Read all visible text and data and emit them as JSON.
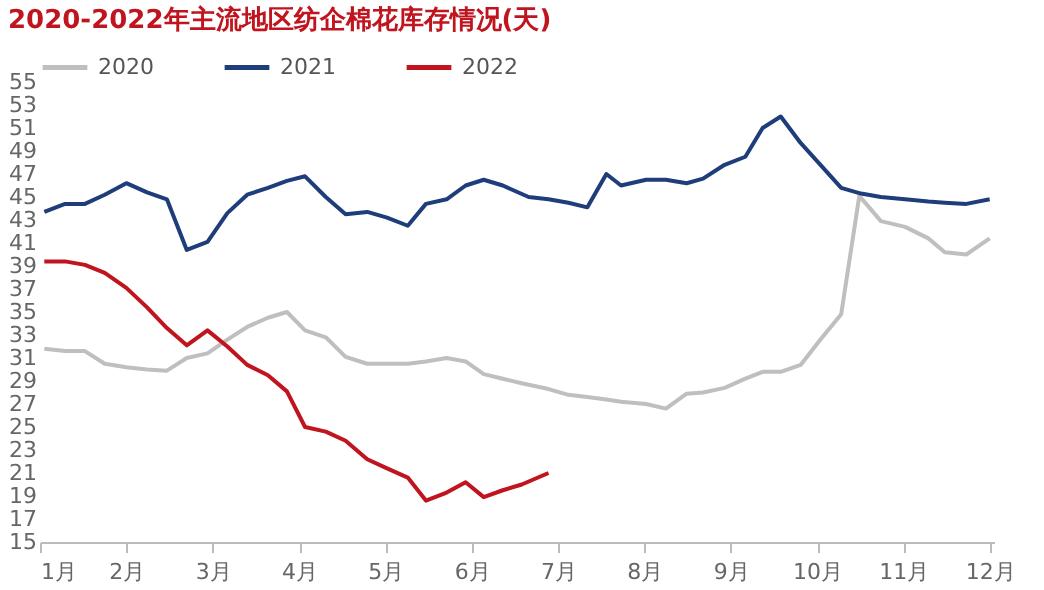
{
  "chart_data": {
    "type": "line",
    "title": "2020-2022年主流地区纺企棉花库存情况(天)",
    "xlim": [
      1,
      12.05
    ],
    "xticks": [
      {
        "value": 1,
        "label": "1月"
      },
      {
        "value": 2,
        "label": "2月"
      },
      {
        "value": 3,
        "label": "3月"
      },
      {
        "value": 4,
        "label": "4月"
      },
      {
        "value": 5,
        "label": "5月"
      },
      {
        "value": 6,
        "label": "6月"
      },
      {
        "value": 7,
        "label": "7月"
      },
      {
        "value": 8,
        "label": "8月"
      },
      {
        "value": 9,
        "label": "9月"
      },
      {
        "value": 10,
        "label": "10月"
      },
      {
        "value": 11,
        "label": "11月"
      },
      {
        "value": 12,
        "label": "12月"
      }
    ],
    "ylim": [
      15,
      55
    ],
    "yticks": [
      15,
      17,
      19,
      21,
      23,
      25,
      27,
      29,
      31,
      33,
      35,
      37,
      39,
      41,
      43,
      45,
      47,
      49,
      51,
      53,
      55
    ],
    "grid": false,
    "legend": "top",
    "marker": "none",
    "line_style": "solid",
    "series": [
      {
        "name": "2020",
        "color": "#bfbfbf",
        "x": [
          1.05,
          1.29,
          1.52,
          1.75,
          2.0,
          2.24,
          2.47,
          2.7,
          2.94,
          3.17,
          3.4,
          3.64,
          3.86,
          4.07,
          4.31,
          4.54,
          4.79,
          5.02,
          5.26,
          5.47,
          5.71,
          5.93,
          6.14,
          6.36,
          6.58,
          6.89,
          7.12,
          7.34,
          7.56,
          7.73,
          8.02,
          8.25,
          8.49,
          8.68,
          8.93,
          9.17,
          9.37,
          9.58,
          9.81,
          10.04,
          10.28,
          10.49,
          10.74,
          11.02,
          11.29,
          11.48,
          11.73,
          12.0
        ],
        "values": [
          31.8,
          31.6,
          31.6,
          30.5,
          30.2,
          30,
          29.9,
          31,
          31.4,
          32.6,
          33.7,
          34.5,
          35,
          33.4,
          32.8,
          31.1,
          30.5,
          30.5,
          30.5,
          30.7,
          31,
          30.7,
          29.6,
          29.2,
          28.8,
          28.3,
          27.8,
          27.6,
          27.4,
          27.2,
          27,
          26.6,
          27.9,
          28,
          28.4,
          29.2,
          29.8,
          29.8,
          30.4,
          32.6,
          34.8,
          45.1,
          42.9,
          42.4,
          41.4,
          40.2,
          40,
          41.4
        ]
      },
      {
        "name": "2021",
        "color": "#1f3d7a",
        "x": [
          1.05,
          1.29,
          1.52,
          1.75,
          2.0,
          2.24,
          2.47,
          2.7,
          2.94,
          3.17,
          3.4,
          3.64,
          3.86,
          4.07,
          4.31,
          4.54,
          4.79,
          5.02,
          5.26,
          5.47,
          5.71,
          5.93,
          6.14,
          6.36,
          6.66,
          6.89,
          7.12,
          7.34,
          7.56,
          7.73,
          8.02,
          8.25,
          8.49,
          8.68,
          8.93,
          9.17,
          9.37,
          9.58,
          9.81,
          10.04,
          10.28,
          10.51,
          10.74,
          11.02,
          11.29,
          11.48,
          11.73,
          12.0
        ],
        "values": [
          43.7,
          44.4,
          44.4,
          45.2,
          46.2,
          45.4,
          44.8,
          40.4,
          41.1,
          43.6,
          45.2,
          45.8,
          46.4,
          46.8,
          45,
          43.5,
          43.7,
          43.2,
          42.5,
          44.4,
          44.8,
          46,
          46.5,
          46,
          45,
          44.8,
          44.5,
          44.1,
          47,
          46,
          46.5,
          46.5,
          46.2,
          46.6,
          47.8,
          48.5,
          51,
          52,
          49.7,
          47.8,
          45.8,
          45.3,
          45,
          44.8,
          44.6,
          44.5,
          44.4,
          44.8
        ]
      },
      {
        "name": "2022",
        "color": "#c0141e",
        "x": [
          1.05,
          1.29,
          1.52,
          1.75,
          2.0,
          2.24,
          2.47,
          2.7,
          2.94,
          3.17,
          3.4,
          3.64,
          3.86,
          4.07,
          4.31,
          4.54,
          4.79,
          5.02,
          5.26,
          5.47,
          5.71,
          5.93,
          6.14,
          6.36,
          6.58,
          6.89
        ],
        "values": [
          39.4,
          39.4,
          39.1,
          38.4,
          37.1,
          35.4,
          33.6,
          32.1,
          33.4,
          32,
          30.4,
          29.5,
          28.1,
          25,
          24.6,
          23.8,
          22.2,
          21.4,
          20.6,
          18.6,
          19.3,
          20.2,
          18.9,
          19.5,
          20,
          21
        ]
      }
    ]
  }
}
